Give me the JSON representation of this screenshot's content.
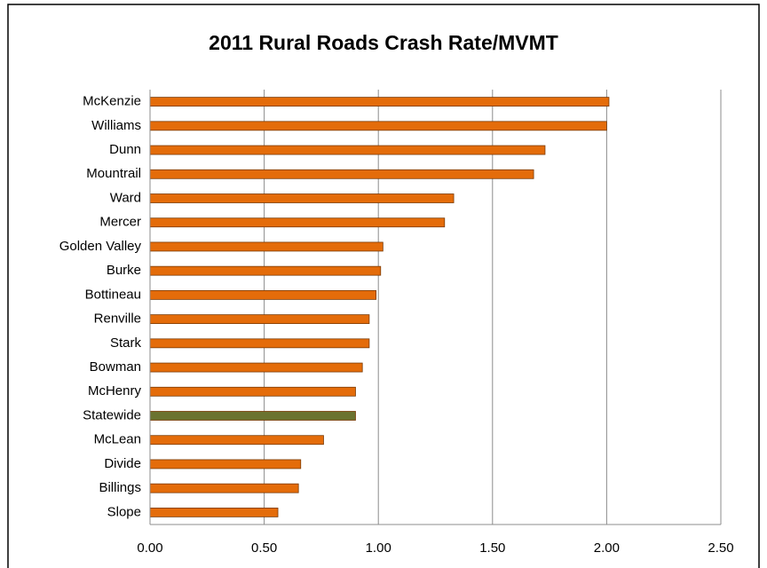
{
  "chart_data": {
    "type": "bar",
    "orientation": "horizontal",
    "title": "2011 Rural Roads Crash Rate/MVMT",
    "categories": [
      "McKenzie",
      "Williams",
      "Dunn",
      "Mountrail",
      "Ward",
      "Mercer",
      "Golden Valley",
      "Burke",
      "Bottineau",
      "Renville",
      "Stark",
      "Bowman",
      "McHenry",
      "Statewide",
      "McLean",
      "Divide",
      "Billings",
      "Slope"
    ],
    "values": [
      2.01,
      2.0,
      1.73,
      1.68,
      1.33,
      1.29,
      1.02,
      1.01,
      0.99,
      0.96,
      0.96,
      0.93,
      0.9,
      0.9,
      0.76,
      0.66,
      0.65,
      0.56
    ],
    "colors": [
      "#e46c0a",
      "#e46c0a",
      "#e46c0a",
      "#e46c0a",
      "#e46c0a",
      "#e46c0a",
      "#e46c0a",
      "#e46c0a",
      "#e46c0a",
      "#e46c0a",
      "#e46c0a",
      "#e46c0a",
      "#e46c0a",
      "#6b7330",
      "#e46c0a",
      "#e46c0a",
      "#e46c0a",
      "#e46c0a"
    ],
    "xlim": [
      0,
      2.5
    ],
    "xticks": [
      {
        "value": 0,
        "label": "0.00"
      },
      {
        "value": 0.5,
        "label": "0.50"
      },
      {
        "value": 1,
        "label": "1.00"
      },
      {
        "value": 1.5,
        "label": "1.50"
      },
      {
        "value": 2,
        "label": "2.00"
      },
      {
        "value": 2.5,
        "label": "2.50"
      }
    ],
    "grid": true
  }
}
